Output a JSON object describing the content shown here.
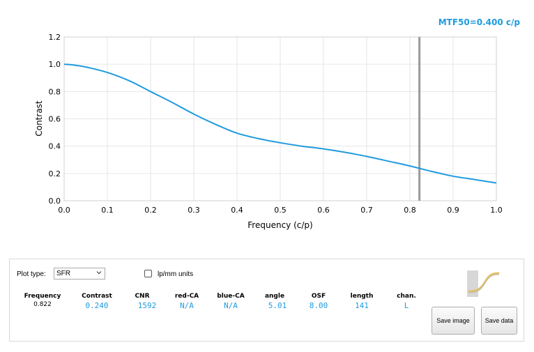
{
  "readout": {
    "mtf50": "MTF50=0.400 c/p"
  },
  "chart_data": {
    "type": "line",
    "xlabel": "Frequency (c/p)",
    "ylabel": "Contrast",
    "xlim": [
      0,
      1.0
    ],
    "ylim": [
      0,
      1.2
    ],
    "x_ticks": [
      "0.0",
      "0.1",
      "0.2",
      "0.3",
      "0.4",
      "0.5",
      "0.6",
      "0.7",
      "0.8",
      "0.9",
      "1.0"
    ],
    "y_ticks": [
      "0.0",
      "0.2",
      "0.4",
      "0.6",
      "0.8",
      "1.0",
      "1.2"
    ],
    "grid": true,
    "series": [
      {
        "color": "#1f9bde",
        "x": [
          0.0,
          0.02,
          0.05,
          0.1,
          0.15,
          0.2,
          0.25,
          0.3,
          0.35,
          0.4,
          0.45,
          0.5,
          0.55,
          0.6,
          0.65,
          0.7,
          0.75,
          0.8,
          0.85,
          0.9,
          0.95,
          1.0
        ],
        "y": [
          1.0,
          0.995,
          0.98,
          0.94,
          0.88,
          0.8,
          0.72,
          0.635,
          0.56,
          0.495,
          0.455,
          0.425,
          0.4,
          0.38,
          0.355,
          0.325,
          0.29,
          0.255,
          0.215,
          0.18,
          0.155,
          0.13
        ]
      }
    ],
    "marker_line": {
      "x": 0.822,
      "color": "#999999"
    }
  },
  "controls": {
    "plot_type_label": "Plot type:",
    "plot_type_value": "SFR",
    "lpmm_label": "lp/mm units",
    "columns": [
      {
        "header": "Frequency",
        "value": "0.822"
      },
      {
        "header": "Contrast",
        "value": "0.240"
      },
      {
        "header": "CNR",
        "value": "1592"
      },
      {
        "header": "red-CA",
        "value": "N/A"
      },
      {
        "header": "blue-CA",
        "value": "N/A"
      },
      {
        "header": "angle",
        "value": "5.01"
      },
      {
        "header": "OSF",
        "value": "8.00"
      },
      {
        "header": "length",
        "value": "141"
      },
      {
        "header": "chan.",
        "value": "L"
      }
    ],
    "save_image_label": "Save image",
    "save_data_label": "Save data"
  },
  "colors": {
    "curve": "#1f9bde",
    "marker": "#999999",
    "grid": "#e6e6e6"
  }
}
